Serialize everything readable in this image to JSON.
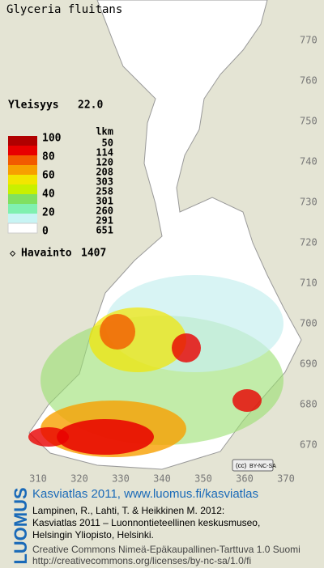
{
  "title": "Glyceria fluitans",
  "frequency": {
    "label": "Yleisyys",
    "value": "22.0"
  },
  "legend": {
    "scale": [
      100,
      80,
      60,
      40,
      20,
      0
    ],
    "count_header": "lkm",
    "counts": [
      50,
      114,
      120,
      208,
      303,
      258,
      301,
      260,
      291,
      651
    ],
    "colors": [
      "#b00000",
      "#e80000",
      "#f25a00",
      "#f7a000",
      "#f2e600",
      "#c8f000",
      "#80e060",
      "#80f0b0",
      "#c8f4f4",
      "#ffffff"
    ]
  },
  "observations": {
    "label": "Havainto",
    "value": 1407
  },
  "y_axis": {
    "ticks": [
      770,
      760,
      750,
      740,
      730,
      720,
      710,
      700,
      690,
      680,
      670
    ]
  },
  "x_axis": {
    "ticks": [
      310,
      320,
      330,
      340,
      350,
      360,
      370
    ]
  },
  "license_badge": "BY-NC-SA",
  "footer": {
    "logo": "LUOMUS",
    "heading": "Kasviatlas 2011, www.luomus.fi/kasviatlas",
    "citation": [
      "Lampinen, R., Lahti, T. & Heikkinen M. 2012:",
      "Kasviatlas 2011 – Luonnontieteellinen keskusmuseo,",
      "Helsingin Yliopisto, Helsinki."
    ],
    "license": [
      "Creative Commons Nimeä-Epäkaupallinen-Tarttuva 1.0 Suomi",
      "http://creativecommons.org/licenses/by-nc-sa/1.0/fi"
    ]
  }
}
